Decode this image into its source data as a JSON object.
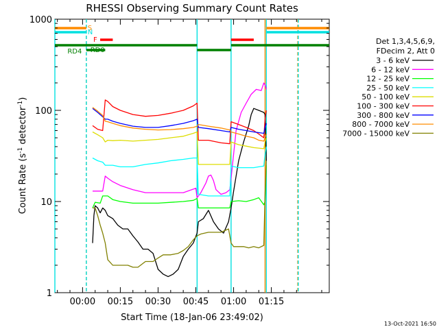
{
  "chart_data": {
    "type": "line",
    "title": "RHESSI Observing Summary Count Rates",
    "xlabel": "Start Time (18-Jan-06 23:49:02)",
    "ylabel_main": "Count Rate (s",
    "ylabel_sup": "-1",
    "ylabel_tail": " detector",
    "ylabel_sup2": "-1",
    "ylabel_close": ")",
    "x_unit": "minutes after 00:00 UT (19-Jan-06)",
    "xlim": [
      -11,
      98
    ],
    "ylim": [
      1,
      1000
    ],
    "log_y": true,
    "x_ticks": [
      {
        "value": 0,
        "label": "00:00"
      },
      {
        "value": 15,
        "label": "00:15"
      },
      {
        "value": 30,
        "label": "00:30"
      },
      {
        "value": 45,
        "label": "00:45"
      },
      {
        "value": 60,
        "label": "01:00"
      },
      {
        "value": 75,
        "label": "01:15"
      }
    ],
    "x_minor_step": 5,
    "y_ticks": [
      {
        "value": 1,
        "label": "1"
      },
      {
        "value": 10,
        "label": "10"
      },
      {
        "value": 100,
        "label": "100"
      },
      {
        "value": 1000,
        "label": "1000"
      }
    ],
    "legend_header": [
      "Det 1,3,4,5,6,9,",
      "FDecim 2, Att 0"
    ],
    "legend_position": "right, outside plot",
    "vertical_markers": [
      {
        "x": -11,
        "color": "#00e0e0",
        "style": "solid"
      },
      {
        "x": 1.5,
        "color": "#ff8c00",
        "style": "dashed"
      },
      {
        "x": 1.5,
        "color": "#00e0e0",
        "style": "dashed"
      },
      {
        "x": 45.5,
        "color": "#00e0e0",
        "style": "solid"
      },
      {
        "x": 59,
        "color": "#00e0e0",
        "style": "solid"
      },
      {
        "x": 72.5,
        "color": "#ff8c00",
        "style": "solid"
      },
      {
        "x": 73,
        "color": "#00e0e0",
        "style": "solid"
      },
      {
        "x": 85.5,
        "color": "#ff8c00",
        "style": "dashed"
      },
      {
        "x": 85.7,
        "color": "#00e0e0",
        "style": "dashed"
      }
    ],
    "flags": [
      {
        "label": "S",
        "color": "#ff8c00",
        "level": 1,
        "segments": [
          [
            -11,
            1.5
          ],
          [
            73,
            98
          ]
        ]
      },
      {
        "label": "N",
        "color": "#00e0e0",
        "level": 2,
        "segments": [
          [
            -11,
            1.5
          ],
          [
            73,
            98
          ]
        ]
      },
      {
        "label": "F",
        "color": "#ff0000",
        "level": 3,
        "segments": [
          [
            7,
            12
          ],
          [
            59,
            68
          ]
        ]
      },
      {
        "label": "RD0",
        "color": "#008000",
        "level": 4,
        "segments": [
          [
            -11,
            45.5
          ],
          [
            59,
            98
          ]
        ]
      },
      {
        "label": "RD4",
        "color": "#008000",
        "level": 5,
        "segments": [
          [
            1.5,
            9
          ],
          [
            45.5,
            59
          ]
        ]
      }
    ],
    "series": [
      {
        "name": "3 - 6 keV",
        "color": "#000000",
        "x": [
          4,
          4.5,
          5,
          6,
          7,
          8,
          9,
          10,
          12,
          14,
          16,
          18,
          20,
          22,
          24,
          26,
          28,
          30,
          32,
          34,
          36,
          38,
          40,
          42,
          44,
          45.5,
          46,
          48,
          50,
          52,
          54,
          56,
          58,
          59,
          60,
          62,
          64,
          66,
          67,
          68,
          70,
          72,
          72.5,
          73
        ],
        "y": [
          3.5,
          7,
          9,
          8.5,
          7.5,
          8.5,
          8,
          7,
          6.5,
          5.5,
          5,
          5,
          4.2,
          3.6,
          3,
          3,
          2.7,
          1.8,
          1.6,
          1.5,
          1.6,
          1.8,
          2.5,
          3,
          3.5,
          4.5,
          6,
          6.5,
          8,
          6,
          5,
          4.5,
          6,
          8.5,
          13,
          28,
          45,
          68,
          90,
          105,
          100,
          95,
          90,
          28
        ]
      },
      {
        "name": "6 - 12 keV",
        "color": "#ff00ff",
        "x": [
          4,
          6,
          8,
          9,
          10,
          12,
          15,
          20,
          25,
          30,
          35,
          40,
          45,
          45.5,
          47,
          49,
          50,
          51,
          52,
          53,
          55,
          57,
          58.5,
          59,
          61,
          63,
          65,
          67,
          69,
          71,
          72,
          72.5,
          73
        ],
        "y": [
          13,
          13,
          13,
          19,
          18,
          16.5,
          15,
          13.5,
          12.5,
          12.5,
          12.5,
          12.5,
          14,
          11,
          12.5,
          16,
          19,
          19.5,
          17,
          13.5,
          12,
          12.5,
          13.5,
          18,
          60,
          95,
          120,
          150,
          170,
          165,
          200,
          190,
          170
        ]
      },
      {
        "name": "12 - 25 keV",
        "color": "#00ff00",
        "x": [
          4,
          5,
          7,
          8,
          10,
          12,
          15,
          20,
          25,
          30,
          35,
          40,
          44,
          45.5,
          46,
          50,
          55,
          58.5,
          59,
          62,
          65,
          68,
          70,
          72,
          72.5,
          73
        ],
        "y": [
          8.5,
          9.8,
          9.6,
          11.5,
          11.5,
          10.5,
          10,
          9.6,
          9.6,
          9.6,
          9.8,
          10,
          10.3,
          10.8,
          8.5,
          8.5,
          8.5,
          8.5,
          10,
          10.2,
          10,
          10.5,
          11,
          9.2,
          10,
          25
        ]
      },
      {
        "name": "25 - 50 keV",
        "color": "#00ffff",
        "x": [
          4,
          6,
          8,
          9,
          10,
          12,
          15,
          20,
          25,
          30,
          35,
          40,
          44,
          45.5,
          46,
          50,
          55,
          58.5,
          59,
          62,
          65,
          68,
          70,
          72,
          72.5,
          73
        ],
        "y": [
          30,
          28,
          27,
          25,
          25,
          25,
          24,
          24,
          25.5,
          26.5,
          28,
          29,
          30,
          30,
          12,
          11.5,
          11.5,
          11.5,
          24.5,
          23.5,
          23.5,
          23.5,
          24,
          24.5,
          33,
          40
        ]
      },
      {
        "name": "50 - 100 keV",
        "color": "#dddd00",
        "x": [
          4,
          6,
          8,
          9,
          10,
          12,
          15,
          20,
          25,
          30,
          35,
          40,
          44,
          45.5,
          46,
          50,
          55,
          58.5,
          59,
          62,
          65,
          68,
          70,
          72,
          72.5,
          73
        ],
        "y": [
          58,
          54,
          50,
          45,
          47,
          46.5,
          47,
          46,
          47,
          48,
          50,
          52,
          56,
          58,
          25.5,
          25.5,
          25.5,
          25.5,
          45,
          42,
          40.5,
          39,
          38.5,
          38,
          45,
          50
        ]
      },
      {
        "name": "100 - 300 keV",
        "color": "#ff0000",
        "x": [
          4,
          6,
          8,
          9,
          10,
          12,
          15,
          20,
          25,
          30,
          35,
          40,
          44,
          45.5,
          46,
          50,
          55,
          58.5,
          59,
          62,
          65,
          68,
          70,
          72,
          72.5,
          73
        ],
        "y": [
          68,
          62,
          60,
          130,
          125,
          110,
          100,
          90,
          86,
          88,
          93,
          100,
          112,
          120,
          47,
          47,
          44,
          43,
          75,
          70,
          65,
          60,
          55,
          50,
          80,
          100
        ]
      },
      {
        "name": "300 - 800 keV",
        "color": "#0000ff",
        "x": [
          4,
          6,
          8,
          9,
          10,
          12,
          15,
          20,
          25,
          30,
          35,
          40,
          44,
          45.5,
          46,
          50,
          55,
          58.5,
          59,
          62,
          65,
          68,
          70,
          72,
          72.5,
          73
        ],
        "y": [
          105,
          95,
          85,
          80,
          80,
          76,
          72,
          67,
          65,
          65,
          68,
          72,
          77,
          80,
          65,
          63,
          60,
          58,
          65,
          62,
          60,
          58,
          57,
          56,
          65,
          72
        ]
      },
      {
        "name": "800 - 7000 keV",
        "color": "#ff8c00",
        "x": [
          4,
          6,
          8,
          9,
          10,
          12,
          15,
          20,
          25,
          30,
          35,
          40,
          44,
          45.5,
          46,
          50,
          55,
          58.5,
          59,
          62,
          65,
          68,
          70,
          72,
          72.5,
          73
        ],
        "y": [
          108,
          98,
          88,
          76,
          75,
          72,
          68,
          64,
          62,
          61,
          61.5,
          63,
          65,
          67,
          70,
          67,
          64,
          61,
          58,
          55,
          52,
          50,
          47,
          46,
          50,
          55
        ]
      },
      {
        "name": "7000 - 15000 keV",
        "color": "#808000",
        "x": [
          4,
          5,
          6,
          7,
          8,
          9,
          10,
          12,
          15,
          18,
          20,
          22,
          25,
          28,
          30,
          32,
          35,
          38,
          40,
          42,
          44,
          45.5,
          47,
          50,
          52,
          55,
          58,
          59,
          60,
          62,
          64,
          66,
          68,
          70,
          72,
          72.5,
          73
        ],
        "y": [
          8.5,
          8.5,
          7,
          5.5,
          4.5,
          3.5,
          2.3,
          2,
          2,
          2,
          1.9,
          1.9,
          2.2,
          2.2,
          2.4,
          2.6,
          2.6,
          2.7,
          2.9,
          3.2,
          3.8,
          4.2,
          4.4,
          4.6,
          4.6,
          4.6,
          5,
          3.5,
          3.2,
          3.2,
          3.2,
          3.1,
          3.2,
          3.1,
          3.3,
          12,
          28
        ]
      }
    ]
  },
  "footer": {
    "timestamp": "13-Oct-2021 16:50"
  }
}
